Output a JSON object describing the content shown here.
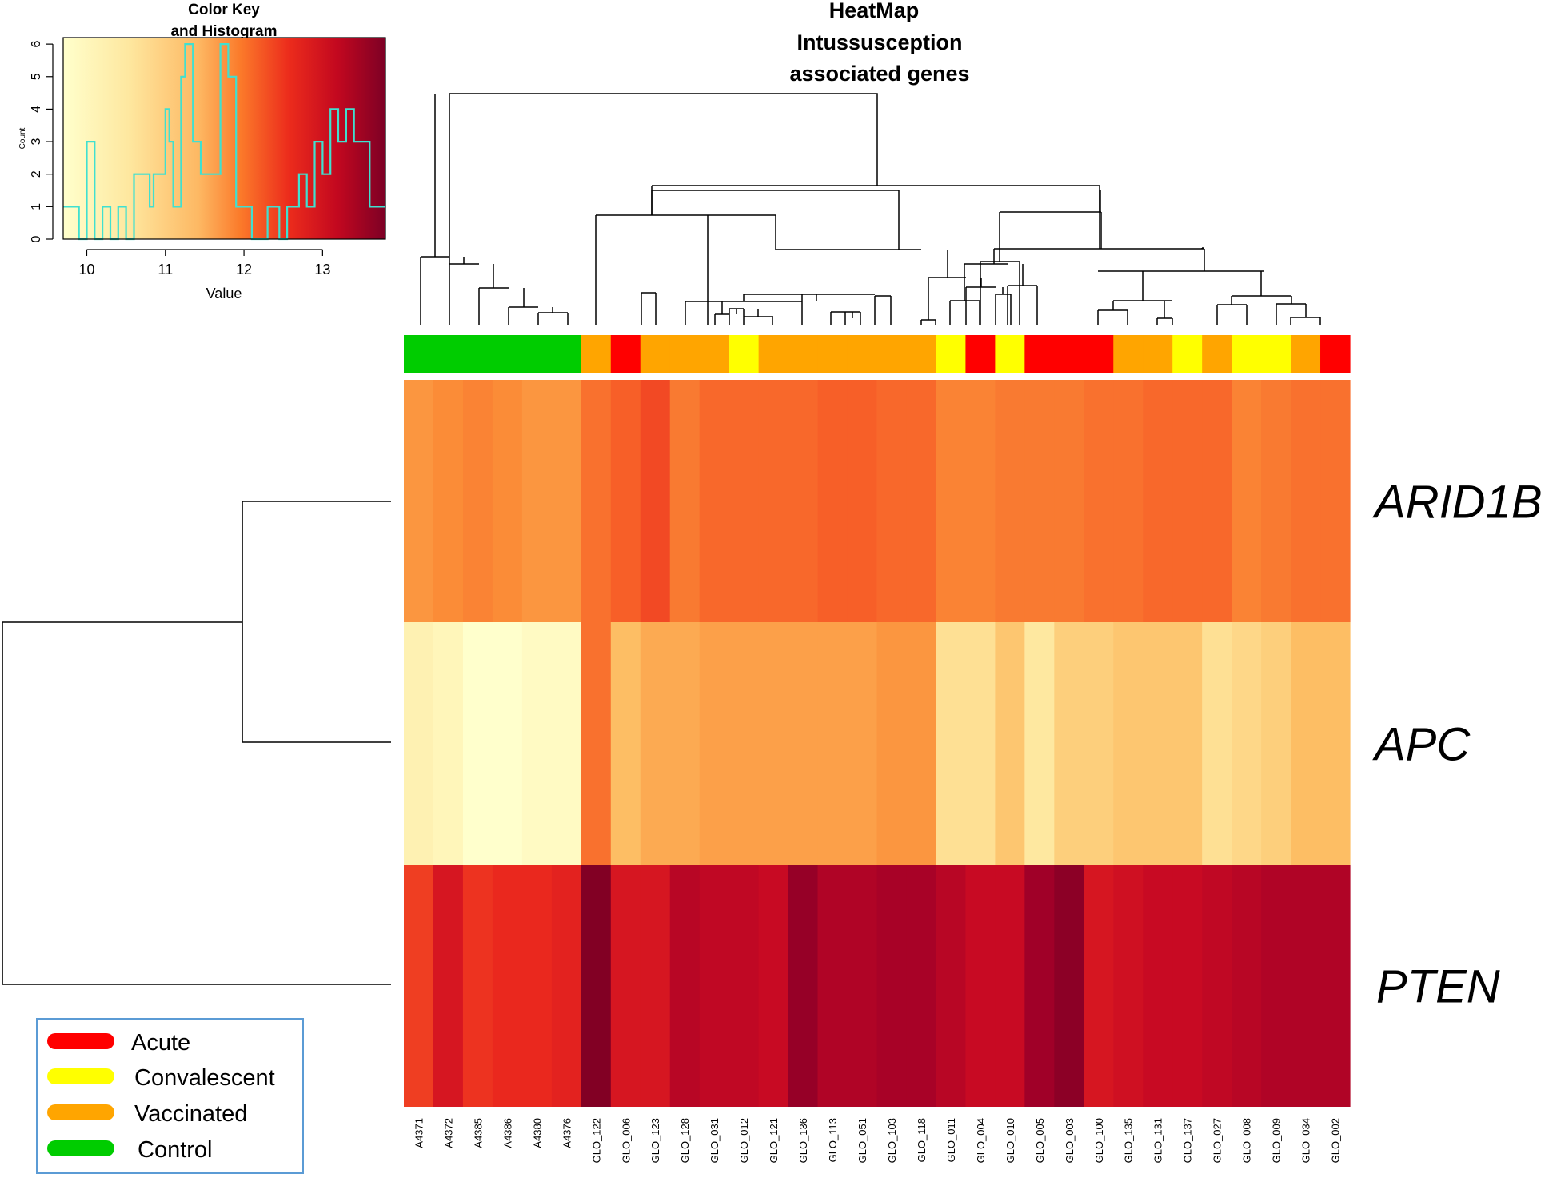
{
  "chart_data": {
    "type": "heatmap",
    "title_lines": [
      "HeatMap",
      "Intussusception",
      "associated genes"
    ],
    "rows": [
      "ARID1B",
      "APC",
      "PTEN"
    ],
    "columns": [
      "A4371",
      "A4372",
      "A4385",
      "A4386",
      "A4380",
      "A4376",
      "GLO_122",
      "GLO_006",
      "GLO_123",
      "GLO_128",
      "GLO_031",
      "GLO_012",
      "GLO_121",
      "GLO_136",
      "GLO_113",
      "GLO_051",
      "GLO_103",
      "GLO_118",
      "GLO_011",
      "GLO_004",
      "GLO_010",
      "GLO_005",
      "GLO_003",
      "GLO_100",
      "GLO_135",
      "GLO_131",
      "GLO_137",
      "GLO_027",
      "GLO_008",
      "GLO_009",
      "GLO_034",
      "GLO_002"
    ],
    "column_groups": [
      "Control",
      "Control",
      "Control",
      "Control",
      "Control",
      "Control",
      "Vaccinated",
      "Acute",
      "Vaccinated",
      "Vaccinated",
      "Vaccinated",
      "Convalescent",
      "Vaccinated",
      "Vaccinated",
      "Vaccinated",
      "Vaccinated",
      "Vaccinated",
      "Vaccinated",
      "Convalescent",
      "Acute",
      "Convalescent",
      "Acute",
      "Acute",
      "Acute",
      "Vaccinated",
      "Vaccinated",
      "Convalescent",
      "Vaccinated",
      "Convalescent",
      "Convalescent",
      "Vaccinated",
      "Acute"
    ],
    "group_colors": {
      "Acute": "#ff0000",
      "Convalescent": "#ffff00",
      "Vaccinated": "#ffa500",
      "Control": "#00cc00"
    },
    "values": [
      [
        11.4,
        11.5,
        11.6,
        11.5,
        11.4,
        11.4,
        11.8,
        12.0,
        12.2,
        11.7,
        11.9,
        11.9,
        11.9,
        11.9,
        12.0,
        12.0,
        11.9,
        11.9,
        11.6,
        11.6,
        11.7,
        11.7,
        11.7,
        11.8,
        11.8,
        11.9,
        11.9,
        11.9,
        11.6,
        11.7,
        11.8,
        11.8
      ],
      [
        10.3,
        10.2,
        10.0,
        10.0,
        10.1,
        10.1,
        11.8,
        11.0,
        11.2,
        11.2,
        11.3,
        11.3,
        11.3,
        11.3,
        11.3,
        11.3,
        11.4,
        11.4,
        10.6,
        10.6,
        10.9,
        10.5,
        10.8,
        10.8,
        10.9,
        10.9,
        10.9,
        10.6,
        10.7,
        10.8,
        11.0,
        11.0
      ],
      [
        12.3,
        12.8,
        12.4,
        12.5,
        12.5,
        12.6,
        13.8,
        12.8,
        12.8,
        13.2,
        13.1,
        13.1,
        13.0,
        13.6,
        13.3,
        13.3,
        13.4,
        13.4,
        13.2,
        13.0,
        13.0,
        13.5,
        13.7,
        12.8,
        12.9,
        13.0,
        13.0,
        13.1,
        13.2,
        13.3,
        13.3,
        13.3
      ]
    ],
    "color_key": {
      "title_lines": [
        "Color Key",
        "and Histogram"
      ],
      "xlabel": "Value",
      "ylabel": "Count",
      "x_ticks": [
        10,
        11,
        12,
        13
      ],
      "y_ticks": [
        0,
        1,
        2,
        3,
        4,
        5,
        6
      ],
      "xlim": [
        9.7,
        13.8
      ],
      "ylim": [
        0,
        6.2
      ],
      "histogram_steps": [
        [
          9.7,
          1
        ],
        [
          9.9,
          0
        ],
        [
          10.0,
          3
        ],
        [
          10.1,
          0
        ],
        [
          10.2,
          1
        ],
        [
          10.3,
          0
        ],
        [
          10.4,
          1
        ],
        [
          10.5,
          0
        ],
        [
          10.6,
          2
        ],
        [
          10.8,
          1
        ],
        [
          10.85,
          2
        ],
        [
          11.0,
          4
        ],
        [
          11.05,
          3
        ],
        [
          11.1,
          1
        ],
        [
          11.2,
          5
        ],
        [
          11.25,
          6
        ],
        [
          11.35,
          3
        ],
        [
          11.45,
          2
        ],
        [
          11.7,
          6
        ],
        [
          11.8,
          5
        ],
        [
          11.9,
          1
        ],
        [
          12.1,
          0
        ],
        [
          12.3,
          1
        ],
        [
          12.45,
          0
        ],
        [
          12.55,
          1
        ],
        [
          12.7,
          2
        ],
        [
          12.8,
          1
        ],
        [
          12.9,
          3
        ],
        [
          13.0,
          2
        ],
        [
          13.1,
          4
        ],
        [
          13.2,
          3
        ],
        [
          13.3,
          4
        ],
        [
          13.4,
          3
        ],
        [
          13.6,
          1
        ],
        [
          13.8,
          1
        ]
      ]
    },
    "legend": [
      "Acute",
      "Convalescent",
      "Vaccinated",
      "Control"
    ]
  }
}
